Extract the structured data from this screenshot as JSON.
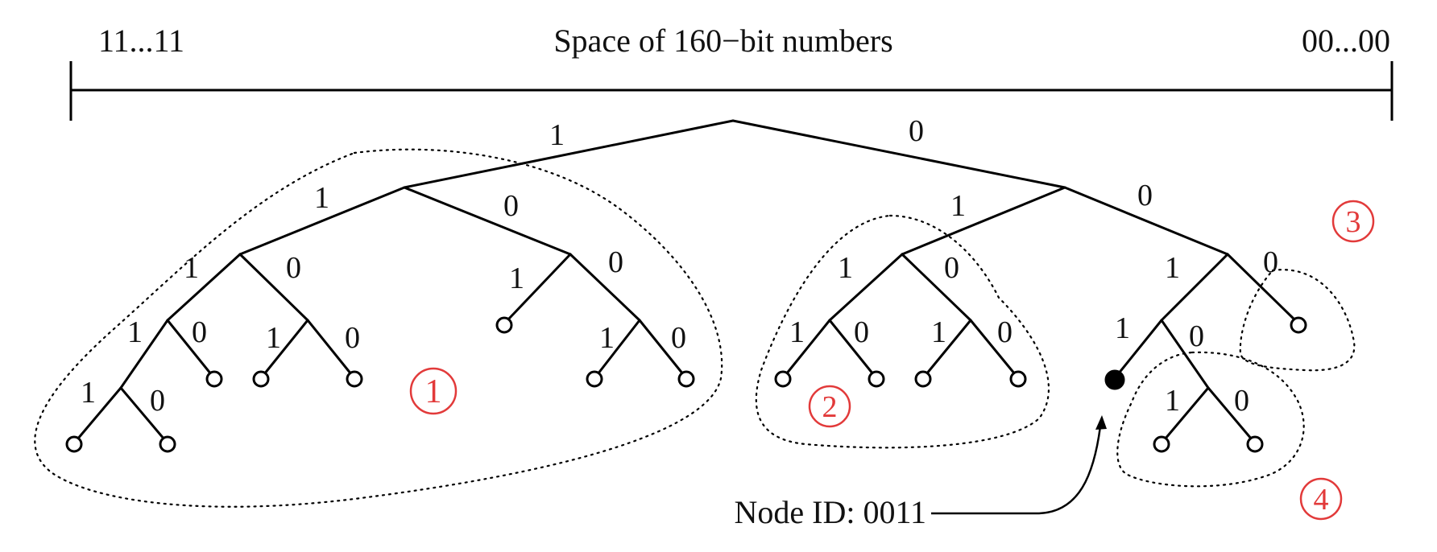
{
  "axis": {
    "left_label": "11...11",
    "title": "Space of 160−bit numbers",
    "right_label": "00...00"
  },
  "edge_label_one": "1",
  "edge_label_zero": "0",
  "subtrees": [
    {
      "number": "1",
      "color": "#e23a3a"
    },
    {
      "number": "2",
      "color": "#e23a3a"
    },
    {
      "number": "3",
      "color": "#e23a3a"
    },
    {
      "number": "4",
      "color": "#e23a3a"
    }
  ],
  "node_annotation": "Node ID: 0011"
}
